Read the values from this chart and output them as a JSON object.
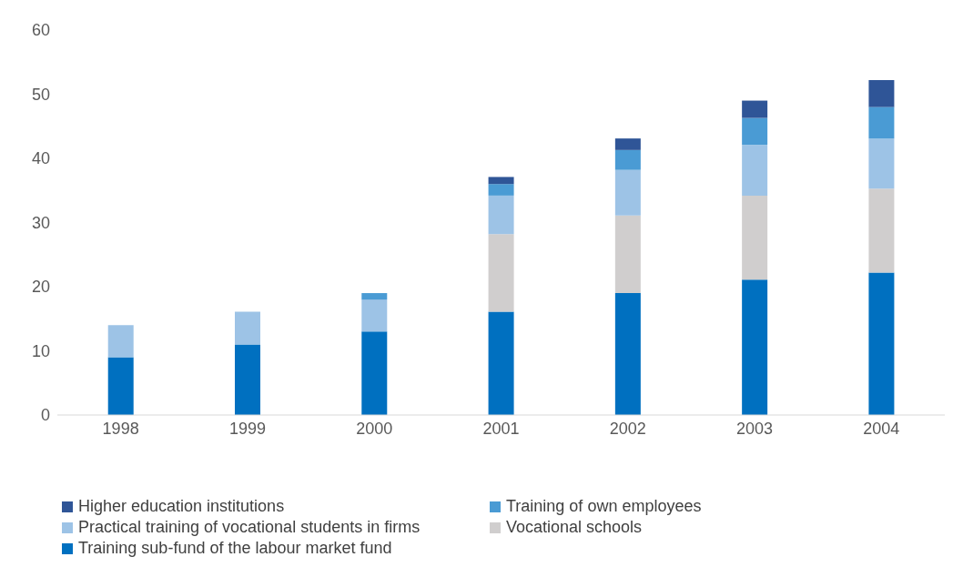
{
  "chart_data": {
    "type": "bar",
    "stacked": true,
    "categories": [
      "1998",
      "1999",
      "2000",
      "2001",
      "2002",
      "2003",
      "2004"
    ],
    "series": [
      {
        "name": "Training sub-fund of the labour market fund",
        "color": "#0070c0",
        "values": [
          9,
          11,
          13,
          16.1,
          19,
          21.1,
          22.2
        ]
      },
      {
        "name": "Vocational schools",
        "color": "#d0cece",
        "values": [
          null,
          null,
          null,
          12.1,
          12.1,
          13.1,
          13.1
        ]
      },
      {
        "name": "Practical training of vocational students in firms",
        "color": "#9dc3e6",
        "values": [
          5,
          5.1,
          5,
          6,
          7.1,
          7.9,
          7.8
        ]
      },
      {
        "name": "Training of own employees",
        "color": "#4a9bd4",
        "values": [
          null,
          null,
          1,
          1.8,
          3.1,
          4.2,
          4.9
        ]
      },
      {
        "name": "Higher education institutions",
        "color": "#2f5597",
        "values": [
          null,
          null,
          null,
          1.1,
          1.8,
          2.7,
          4.2
        ]
      }
    ],
    "ylim": [
      0,
      60
    ],
    "yticks": [
      0,
      10,
      20,
      30,
      40,
      50,
      60
    ],
    "grid": false,
    "legend": "bottom"
  }
}
